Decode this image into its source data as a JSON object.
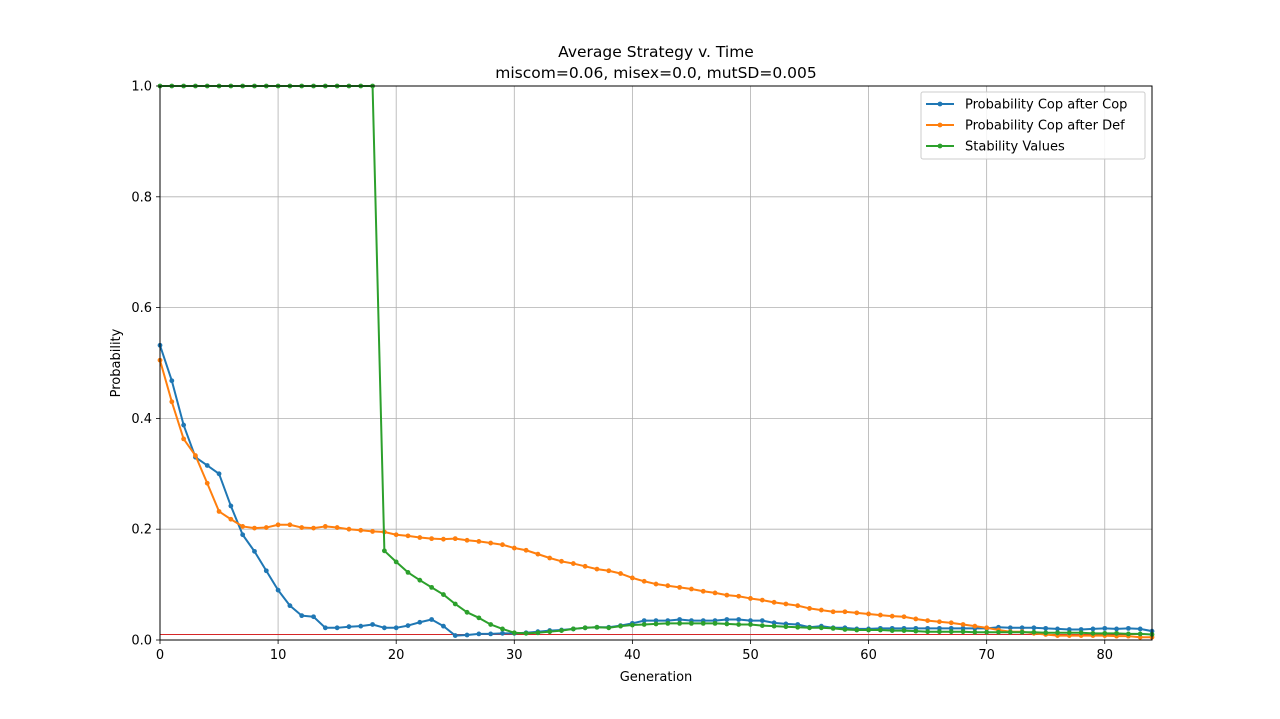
{
  "chart_data": {
    "type": "line",
    "title": "Average Strategy v. Time",
    "subtitle": "miscom=0.06, misex=0.0, mutSD=0.005",
    "xlabel": "Generation",
    "ylabel": "Probability",
    "xlim": [
      0,
      84
    ],
    "ylim": [
      0,
      1.0
    ],
    "xticks": [
      0,
      10,
      20,
      30,
      40,
      50,
      60,
      70,
      80
    ],
    "yticks": [
      0.0,
      0.2,
      0.4,
      0.6,
      0.8,
      1.0
    ],
    "grid": true,
    "legend_position": "top-right",
    "reference_line": {
      "y": 0.01,
      "color": "#d62728"
    },
    "series": [
      {
        "name": "Probability Cop after Cop",
        "color": "#1f77b4",
        "x": [
          0,
          1,
          2,
          3,
          4,
          5,
          6,
          7,
          8,
          9,
          10,
          11,
          12,
          13,
          14,
          15,
          16,
          17,
          18,
          19,
          20,
          21,
          22,
          23,
          24,
          25,
          26,
          27,
          28,
          29,
          30,
          31,
          32,
          33,
          34,
          35,
          36,
          37,
          38,
          39,
          40,
          41,
          42,
          43,
          44,
          45,
          46,
          47,
          48,
          49,
          50,
          51,
          52,
          53,
          54,
          55,
          56,
          57,
          58,
          59,
          60,
          61,
          62,
          63,
          64,
          65,
          66,
          67,
          68,
          69,
          70,
          71,
          72,
          73,
          74,
          75,
          76,
          77,
          78,
          79,
          80,
          81,
          82,
          83,
          84
        ],
        "values": [
          0.532,
          0.468,
          0.388,
          0.33,
          0.315,
          0.3,
          0.242,
          0.19,
          0.16,
          0.125,
          0.09,
          0.062,
          0.044,
          0.042,
          0.022,
          0.022,
          0.024,
          0.025,
          0.028,
          0.022,
          0.022,
          0.026,
          0.032,
          0.037,
          0.025,
          0.008,
          0.009,
          0.011,
          0.011,
          0.012,
          0.012,
          0.013,
          0.015,
          0.017,
          0.018,
          0.02,
          0.022,
          0.023,
          0.023,
          0.026,
          0.03,
          0.035,
          0.035,
          0.035,
          0.037,
          0.035,
          0.035,
          0.035,
          0.037,
          0.037,
          0.035,
          0.035,
          0.031,
          0.029,
          0.028,
          0.023,
          0.025,
          0.022,
          0.022,
          0.02,
          0.02,
          0.021,
          0.021,
          0.021,
          0.021,
          0.021,
          0.021,
          0.021,
          0.021,
          0.021,
          0.021,
          0.023,
          0.022,
          0.022,
          0.022,
          0.021,
          0.02,
          0.019,
          0.019,
          0.02,
          0.021,
          0.02,
          0.021,
          0.02,
          0.016
        ]
      },
      {
        "name": "Probability Cop after Def",
        "color": "#ff7f0e",
        "x": [
          0,
          1,
          2,
          3,
          4,
          5,
          6,
          7,
          8,
          9,
          10,
          11,
          12,
          13,
          14,
          15,
          16,
          17,
          18,
          19,
          20,
          21,
          22,
          23,
          24,
          25,
          26,
          27,
          28,
          29,
          30,
          31,
          32,
          33,
          34,
          35,
          36,
          37,
          38,
          39,
          40,
          41,
          42,
          43,
          44,
          45,
          46,
          47,
          48,
          49,
          50,
          51,
          52,
          53,
          54,
          55,
          56,
          57,
          58,
          59,
          60,
          61,
          62,
          63,
          64,
          65,
          66,
          67,
          68,
          69,
          70,
          71,
          72,
          73,
          74,
          75,
          76,
          77,
          78,
          79,
          80,
          81,
          82,
          83,
          84
        ],
        "values": [
          0.505,
          0.43,
          0.363,
          0.333,
          0.283,
          0.232,
          0.218,
          0.205,
          0.202,
          0.203,
          0.208,
          0.208,
          0.203,
          0.202,
          0.205,
          0.203,
          0.2,
          0.198,
          0.196,
          0.195,
          0.19,
          0.188,
          0.185,
          0.183,
          0.182,
          0.183,
          0.18,
          0.178,
          0.175,
          0.172,
          0.166,
          0.162,
          0.155,
          0.148,
          0.142,
          0.138,
          0.133,
          0.128,
          0.125,
          0.12,
          0.112,
          0.106,
          0.101,
          0.098,
          0.095,
          0.092,
          0.088,
          0.085,
          0.081,
          0.079,
          0.075,
          0.072,
          0.068,
          0.065,
          0.062,
          0.057,
          0.054,
          0.051,
          0.051,
          0.049,
          0.047,
          0.045,
          0.043,
          0.042,
          0.038,
          0.035,
          0.033,
          0.031,
          0.028,
          0.025,
          0.022,
          0.018,
          0.015,
          0.015,
          0.012,
          0.01,
          0.008,
          0.008,
          0.008,
          0.008,
          0.008,
          0.007,
          0.007,
          0.005,
          0.005
        ]
      },
      {
        "name": "Stability Values",
        "color": "#2ca02c",
        "x": [
          0,
          1,
          2,
          3,
          4,
          5,
          6,
          7,
          8,
          9,
          10,
          11,
          12,
          13,
          14,
          15,
          16,
          17,
          18,
          19,
          20,
          21,
          22,
          23,
          24,
          25,
          26,
          27,
          28,
          29,
          30,
          31,
          32,
          33,
          34,
          35,
          36,
          37,
          38,
          39,
          40,
          41,
          42,
          43,
          44,
          45,
          46,
          47,
          48,
          49,
          50,
          51,
          52,
          53,
          54,
          55,
          56,
          57,
          58,
          59,
          60,
          61,
          62,
          63,
          64,
          65,
          66,
          67,
          68,
          69,
          70,
          71,
          72,
          73,
          74,
          75,
          76,
          77,
          78,
          79,
          80,
          81,
          82,
          83,
          84
        ],
        "values": [
          1.0,
          1.0,
          1.0,
          1.0,
          1.0,
          1.0,
          1.0,
          1.0,
          1.0,
          1.0,
          1.0,
          1.0,
          1.0,
          1.0,
          1.0,
          1.0,
          1.0,
          1.0,
          1.0,
          0.161,
          0.141,
          0.122,
          0.108,
          0.095,
          0.082,
          0.065,
          0.05,
          0.04,
          0.028,
          0.02,
          0.013,
          0.012,
          0.013,
          0.015,
          0.017,
          0.02,
          0.022,
          0.023,
          0.022,
          0.025,
          0.027,
          0.028,
          0.029,
          0.03,
          0.03,
          0.03,
          0.03,
          0.03,
          0.029,
          0.028,
          0.028,
          0.026,
          0.025,
          0.024,
          0.023,
          0.022,
          0.022,
          0.021,
          0.019,
          0.018,
          0.018,
          0.018,
          0.017,
          0.017,
          0.016,
          0.015,
          0.015,
          0.015,
          0.015,
          0.014,
          0.014,
          0.014,
          0.014,
          0.014,
          0.014,
          0.013,
          0.013,
          0.013,
          0.013,
          0.012,
          0.012,
          0.012,
          0.011,
          0.011,
          0.01
        ]
      }
    ]
  }
}
